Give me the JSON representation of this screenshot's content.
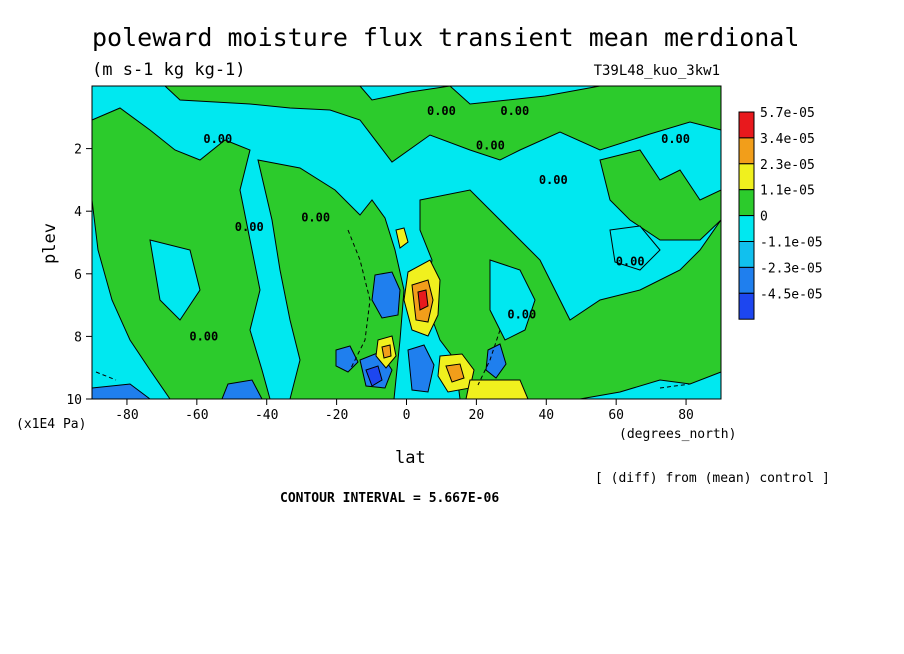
{
  "title": "poleward moisture flux transient mean merdional",
  "units": "(m s-1 kg kg-1)",
  "experiment": "T39L48_kuo_3kw1",
  "note": "[ (diff) from (mean) control ]",
  "contour_interval": "CONTOUR INTERVAL = 5.667E-06",
  "chart_data": {
    "type": "heatmap",
    "xlabel": "lat",
    "xunits": "(degrees_north)",
    "ylabel": "plev",
    "yunits": "(x1E4 Pa)",
    "xlim": [
      -90,
      90
    ],
    "ylim": [
      0,
      10
    ],
    "x_ticks": [
      {
        "value": -80,
        "label": "-80"
      },
      {
        "value": -60,
        "label": "-60"
      },
      {
        "value": -40,
        "label": "-40"
      },
      {
        "value": -20,
        "label": "-20"
      },
      {
        "value": 0,
        "label": "0"
      },
      {
        "value": 20,
        "label": "20"
      },
      {
        "value": 40,
        "label": "40"
      },
      {
        "value": 60,
        "label": "60"
      },
      {
        "value": 80,
        "label": "80"
      }
    ],
    "y_ticks": [
      {
        "value": 2,
        "label": "2"
      },
      {
        "value": 4,
        "label": "4"
      },
      {
        "value": 6,
        "label": "6"
      },
      {
        "value": 8,
        "label": "8"
      },
      {
        "value": 10,
        "label": "10"
      }
    ],
    "y_reversed": true,
    "colorbar": [
      {
        "label": "5.7e-05",
        "color": "#e8191d"
      },
      {
        "label": "3.4e-05",
        "color": "#f29e1a"
      },
      {
        "label": "2.3e-05",
        "color": "#f0f01e"
      },
      {
        "label": "1.1e-05",
        "color": "#2ccb2c"
      },
      {
        "label": "0",
        "color": "#00e8f0"
      },
      {
        "label": "-1.1e-05",
        "color": "#11c0ee"
      },
      {
        "label": "-2.3e-05",
        "color": "#1f7fee"
      },
      {
        "label": "-4.5e-05",
        "color": "#1d46f0"
      }
    ],
    "contour_labels": [
      {
        "x": -54,
        "y": 1.7,
        "text": "0.00"
      },
      {
        "x": 10,
        "y": 0.8,
        "text": "0.00"
      },
      {
        "x": 31,
        "y": 0.8,
        "text": "0.00"
      },
      {
        "x": 24,
        "y": 1.9,
        "text": "0.00"
      },
      {
        "x": 42,
        "y": 3.0,
        "text": "0.00"
      },
      {
        "x": -45,
        "y": 4.5,
        "text": "0.00"
      },
      {
        "x": -26,
        "y": 4.2,
        "text": "0.00"
      },
      {
        "x": 77,
        "y": 1.7,
        "text": "0.00"
      },
      {
        "x": 64,
        "y": 5.6,
        "text": "0.00"
      },
      {
        "x": 33,
        "y": 7.3,
        "text": "0.00"
      },
      {
        "x": -58,
        "y": 8.0,
        "text": "0.00"
      }
    ]
  }
}
